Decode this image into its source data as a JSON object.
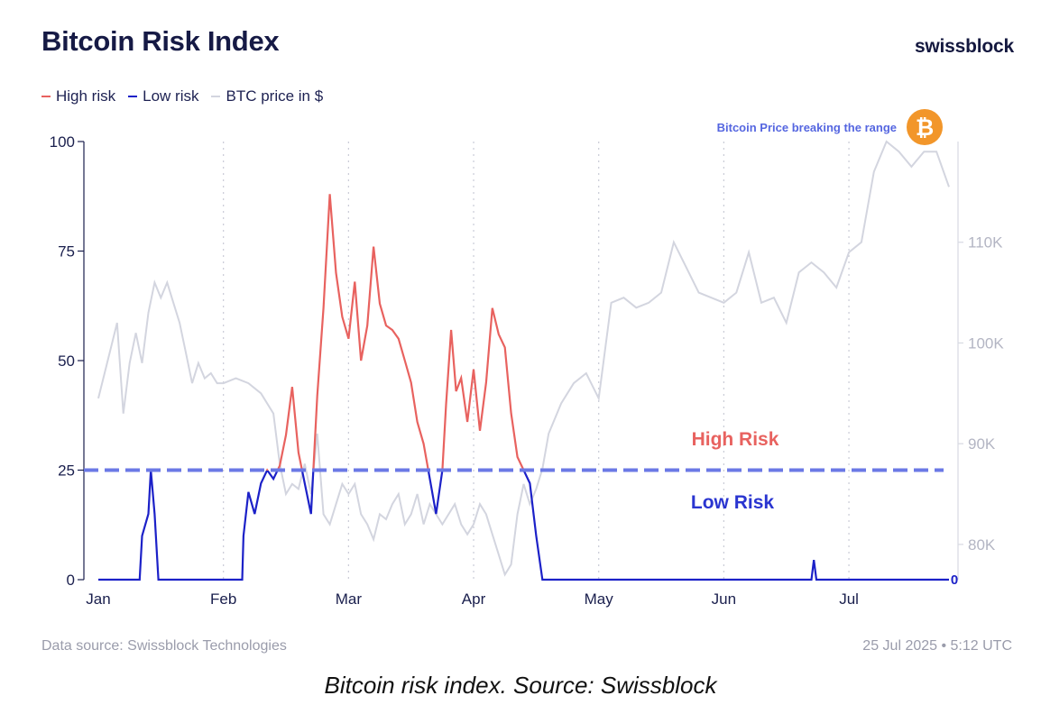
{
  "header": {
    "title": "Bitcoin Risk Index",
    "brand": "swissblock"
  },
  "footer": {
    "source": "Data source: Swissblock Technologies",
    "timestamp": "25 Jul 2025 • 5:12 UTC"
  },
  "caption": "Bitcoin risk index. Source: Swissblock",
  "colors": {
    "high_risk": "#e8625f",
    "low_risk": "#1c21c8",
    "btc_price": "#d3d5df",
    "threshold": "#6b79e6",
    "btc_badge": "#f2962a"
  },
  "icons": {
    "btc_badge": "bitcoin-icon"
  },
  "chart_data": {
    "type": "line",
    "title": "Bitcoin Risk Index",
    "legend": [
      {
        "name": "High risk",
        "color": "#e8625f"
      },
      {
        "name": "Low risk",
        "color": "#1c21c8"
      },
      {
        "name": "BTC price in $",
        "color": "#d3d5df"
      }
    ],
    "legend_placement": "top-left",
    "x_ticks": [
      "Jan",
      "Feb",
      "Mar",
      "Apr",
      "May",
      "Jun",
      "Jul"
    ],
    "x_range_months": [
      0,
      6.8
    ],
    "y_left": {
      "ticks": [
        "0",
        "25",
        "50",
        "75",
        "100"
      ],
      "range": [
        0,
        100
      ]
    },
    "y_right": {
      "ticks": [
        "80K",
        "90K",
        "100K",
        "110K"
      ],
      "range": [
        76500,
        120000
      ],
      "unit": "$"
    },
    "grid": "vertical dotted lines at month ticks",
    "threshold": {
      "value": 25,
      "style": "dashed"
    },
    "annotations": {
      "high_zone": "High Risk",
      "low_zone": "Low Risk",
      "breakout": "Bitcoin Price breaking the range",
      "end_value": "0"
    },
    "series": [
      {
        "name": "Risk index",
        "axis": "left",
        "x": [
          0,
          0.33,
          0.35,
          0.4,
          0.42,
          0.45,
          0.48,
          0.5,
          0.53,
          1.0,
          1.15,
          1.16,
          1.2,
          1.25,
          1.3,
          1.35,
          1.4,
          1.45,
          1.5,
          1.55,
          1.6,
          1.65,
          1.7,
          1.75,
          1.8,
          1.85,
          1.9,
          1.95,
          2.0,
          2.05,
          2.1,
          2.15,
          2.2,
          2.25,
          2.3,
          2.35,
          2.4,
          2.45,
          2.5,
          2.55,
          2.6,
          2.65,
          2.7,
          2.75,
          2.78,
          2.82,
          2.86,
          2.9,
          2.95,
          3.0,
          3.05,
          3.1,
          3.15,
          3.2,
          3.25,
          3.3,
          3.35,
          3.4,
          3.45,
          3.5,
          3.55,
          3.6,
          3.65,
          3.7,
          3.75,
          3.8,
          3.85,
          4.0,
          5.0,
          5.7,
          5.72,
          5.74,
          5.76,
          6.0,
          6.8
        ],
        "y": [
          0,
          0,
          10,
          15,
          25,
          15,
          0,
          0,
          0,
          0,
          0,
          10,
          20,
          15,
          22,
          25,
          23,
          26,
          33,
          44,
          29,
          22,
          15,
          42,
          62,
          88,
          70,
          60,
          55,
          68,
          50,
          58,
          76,
          63,
          58,
          57,
          55,
          50,
          45,
          36,
          31,
          23,
          15,
          25,
          40,
          57,
          43,
          46,
          36,
          48,
          34,
          45,
          62,
          56,
          53,
          38,
          28,
          25,
          22,
          10,
          0,
          0,
          0,
          0,
          0,
          0,
          0,
          0,
          0,
          0,
          4.5,
          0,
          0,
          0,
          0
        ]
      },
      {
        "name": "BTC price in $",
        "axis": "right",
        "x": [
          0,
          0.1,
          0.15,
          0.2,
          0.25,
          0.3,
          0.35,
          0.4,
          0.45,
          0.5,
          0.55,
          0.6,
          0.65,
          0.7,
          0.75,
          0.8,
          0.85,
          0.9,
          0.95,
          1.0,
          1.1,
          1.2,
          1.3,
          1.4,
          1.45,
          1.5,
          1.55,
          1.6,
          1.65,
          1.7,
          1.75,
          1.8,
          1.85,
          1.9,
          1.95,
          2.0,
          2.05,
          2.1,
          2.15,
          2.2,
          2.25,
          2.3,
          2.35,
          2.4,
          2.45,
          2.5,
          2.55,
          2.6,
          2.65,
          2.7,
          2.75,
          2.8,
          2.85,
          2.9,
          2.95,
          3.0,
          3.05,
          3.1,
          3.15,
          3.2,
          3.25,
          3.3,
          3.35,
          3.4,
          3.45,
          3.5,
          3.55,
          3.6,
          3.7,
          3.8,
          3.9,
          4.0,
          4.1,
          4.2,
          4.3,
          4.4,
          4.5,
          4.6,
          4.7,
          4.8,
          4.9,
          5.0,
          5.1,
          5.2,
          5.3,
          5.4,
          5.5,
          5.6,
          5.7,
          5.8,
          5.9,
          6.0,
          6.1,
          6.2,
          6.3,
          6.4,
          6.5,
          6.6,
          6.7,
          6.8
        ],
        "y": [
          94500,
          99500,
          102000,
          93000,
          98000,
          101000,
          98000,
          103000,
          106000,
          104500,
          106000,
          104000,
          102000,
          99000,
          96000,
          98000,
          96500,
          97000,
          96000,
          96000,
          96500,
          96000,
          95000,
          93000,
          88000,
          85000,
          86000,
          85500,
          88000,
          85000,
          91000,
          83000,
          82000,
          84000,
          86000,
          85000,
          86000,
          83000,
          82000,
          80500,
          83000,
          82500,
          84000,
          85000,
          82000,
          83000,
          85000,
          82000,
          84000,
          83000,
          82000,
          83000,
          84000,
          82000,
          81000,
          82000,
          84000,
          83000,
          81000,
          79000,
          77000,
          78000,
          83000,
          86000,
          84000,
          85500,
          87500,
          91000,
          94000,
          96000,
          97000,
          94500,
          104000,
          104500,
          103500,
          104000,
          105000,
          110000,
          107500,
          105000,
          104500,
          104000,
          105000,
          109000,
          104000,
          104500,
          102000,
          107000,
          108000,
          107000,
          105500,
          109000,
          110000,
          117000,
          120000,
          119000,
          117500,
          119000,
          119000,
          115500
        ]
      }
    ]
  }
}
